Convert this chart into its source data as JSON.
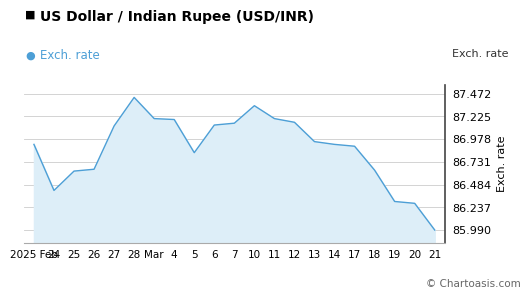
{
  "title": "US Dollar / Indian Rupee (USD/INR)",
  "legend_label": "Exch. rate",
  "ylabel": "Exch. rate",
  "watermark": "© Chartoasis.com",
  "x_labels": [
    "2025 Feb",
    "24",
    "25",
    "26",
    "27",
    "28",
    "Mar",
    "4",
    "5",
    "6",
    "7",
    "10",
    "11",
    "12",
    "13",
    "14",
    "17",
    "18",
    "19",
    "20",
    "21"
  ],
  "y_ticks": [
    85.99,
    86.237,
    86.484,
    86.731,
    86.978,
    87.225,
    87.472
  ],
  "ylim": [
    85.85,
    87.57
  ],
  "data_x": [
    0,
    1,
    2,
    3,
    4,
    5,
    6,
    7,
    8,
    9,
    10,
    11,
    12,
    13,
    14,
    15,
    16,
    17,
    18,
    19,
    20
  ],
  "data_y": [
    86.92,
    86.42,
    86.63,
    86.65,
    87.12,
    87.43,
    87.2,
    87.19,
    86.83,
    87.13,
    87.15,
    87.34,
    87.2,
    87.16,
    86.95,
    86.92,
    86.9,
    86.64,
    86.3,
    86.28,
    85.99
  ],
  "line_color": "#4d9fd6",
  "fill_color": "#ddeef8",
  "background_color": "#ffffff",
  "grid_color": "#cccccc",
  "title_color": "#000000",
  "legend_dot_color": "#4d9fd6",
  "title_fontsize": 10,
  "legend_fontsize": 8.5,
  "tick_fontsize": 8,
  "ylabel_fontsize": 8,
  "watermark_fontsize": 7.5
}
